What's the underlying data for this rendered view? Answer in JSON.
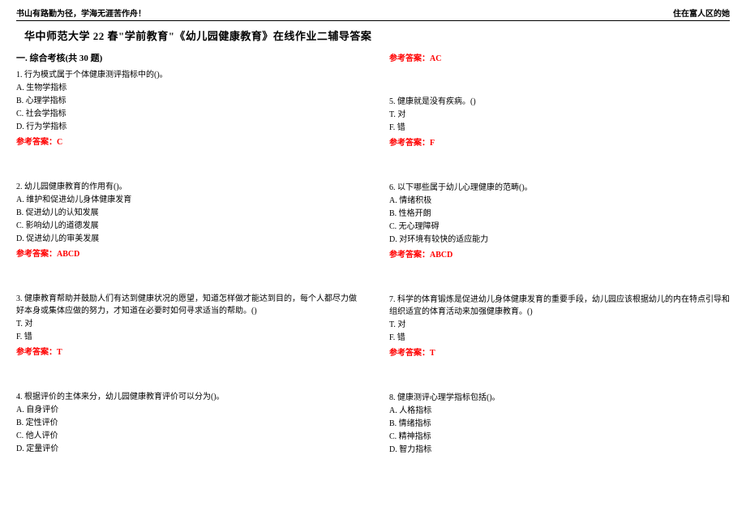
{
  "header": {
    "left": "书山有路勤为径，学海无涯苦作舟！",
    "right": "住在富人区的她"
  },
  "title": "华中师范大学 22 春\"学前教育\"《幼儿园健康教育》在线作业二辅导答案",
  "section": "一. 综合考核(共 30 题)",
  "rightTopAnswer": "参考答案：AC",
  "leftQuestions": [
    {
      "stem": "1. 行为模式属于个体健康测评指标中的()。",
      "options": [
        "A. 生物学指标",
        "B. 心理学指标",
        "C. 社会学指标",
        "D. 行为学指标"
      ],
      "answer": "参考答案：C"
    },
    {
      "stem": "2. 幼儿园健康教育的作用有()。",
      "options": [
        "A. 维护和促进幼儿身体健康发育",
        "B. 促进幼儿的认知发展",
        "C. 影响幼儿的道德发展",
        "D. 促进幼儿的审美发展"
      ],
      "answer": "参考答案：ABCD"
    },
    {
      "stem": "3. 健康教育帮助并鼓励人们有达到健康状况的愿望，知道怎样做才能达到目的，每个人都尽力做好本身或集体应做的努力，才知道在必要时如何寻求适当的帮助。()",
      "options": [
        "T. 对",
        "F. 错"
      ],
      "answer": "参考答案：T"
    },
    {
      "stem": "4. 根据评价的主体来分，幼儿园健康教育评价可以分为()。",
      "options": [
        "A. 自身评价",
        "B. 定性评价",
        "C. 他人评价",
        "D. 定量评价"
      ],
      "answer": ""
    }
  ],
  "rightQuestions": [
    {
      "stem": "5. 健康就是没有疾病。()",
      "options": [
        "T. 对",
        "F. 错"
      ],
      "answer": "参考答案：F"
    },
    {
      "stem": "6. 以下哪些属于幼儿心理健康的范畴()。",
      "options": [
        "A. 情绪积极",
        "B. 性格开朗",
        "C. 无心理障碍",
        "D. 对环境有较快的适应能力"
      ],
      "answer": "参考答案：ABCD"
    },
    {
      "stem": "7. 科学的体育锻炼是促进幼儿身体健康发育的重要手段，幼儿园应该根据幼儿的内在特点引导和组织适宜的体育活动来加强健康教育。()",
      "options": [
        "T. 对",
        "F. 错"
      ],
      "answer": "参考答案：T"
    },
    {
      "stem": "8. 健康测评心理学指标包括()。",
      "options": [
        "A. 人格指标",
        "B. 情绪指标",
        "C. 精神指标",
        "D. 智力指标"
      ],
      "answer": ""
    }
  ]
}
